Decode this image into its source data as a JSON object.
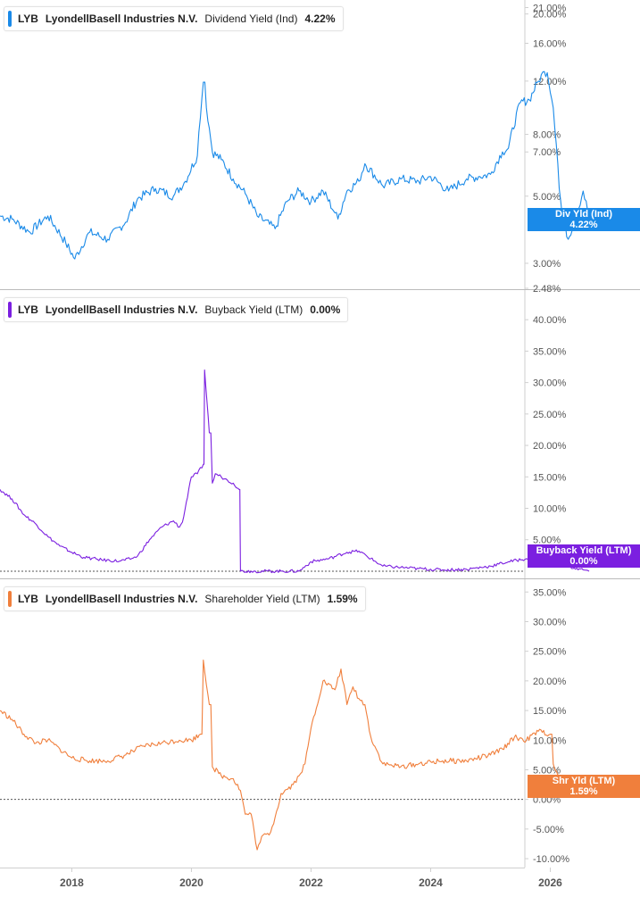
{
  "colors": {
    "dividend": "#1a8ae8",
    "buyback": "#7b1fe0",
    "shareholder": "#f07f3c",
    "axis_text": "#555555",
    "divider": "#bbbbbb"
  },
  "chart_data": [
    {
      "type": "line",
      "title": "LYB  LyondellBasell Industries N.V.  Dividend Yield (Ind)  4.22%",
      "legend": {
        "ticker": "LYB",
        "company": "LyondellBasell Industries N.V.",
        "metric": "Dividend Yield (Ind)",
        "value": "4.22%"
      },
      "badge": {
        "label": "Div Yld (Ind)",
        "value": "4.22%"
      },
      "scale": "log",
      "ylim": [
        2.48,
        21.5
      ],
      "yticks": [
        "21.00%",
        "20.00%",
        "16.00%",
        "12.00%",
        "8.00%",
        "7.00%",
        "5.00%",
        "3.00%",
        "2.48%"
      ],
      "x": [
        2016.8,
        2017.0,
        2017.3,
        2017.6,
        2017.9,
        2018.05,
        2018.3,
        2018.6,
        2018.9,
        2019.1,
        2019.4,
        2019.7,
        2019.9,
        2020.1,
        2020.2,
        2020.25,
        2020.35,
        2020.5,
        2020.7,
        2020.9,
        2021.1,
        2021.4,
        2021.6,
        2021.8,
        2022.0,
        2022.2,
        2022.4,
        2022.45,
        2022.6,
        2022.8,
        2022.9,
        2023.2,
        2023.5,
        2023.8,
        2024.0,
        2024.3,
        2024.6,
        2024.8,
        2025.0,
        2025.2,
        2025.3,
        2025.5,
        2025.65,
        2025.8,
        2025.9,
        2025.95,
        2026.05,
        2026.15,
        2026.2,
        2026.3,
        2026.45,
        2026.55,
        2026.65
      ],
      "series": [
        {
          "name": "Dividend Yield (Ind)",
          "values": [
            4.3,
            4.2,
            3.8,
            4.3,
            3.5,
            3.1,
            3.8,
            3.6,
            4.1,
            4.9,
            5.3,
            5.0,
            5.6,
            6.8,
            11.9,
            9.8,
            7.0,
            6.6,
            5.7,
            5.1,
            4.3,
            3.9,
            4.8,
            5.2,
            4.8,
            5.2,
            4.4,
            4.2,
            5.2,
            5.6,
            6.4,
            5.4,
            5.7,
            5.6,
            5.8,
            5.2,
            5.7,
            5.8,
            5.9,
            7.0,
            7.2,
            10.2,
            10.4,
            12.0,
            12.9,
            12.8,
            9.8,
            5.3,
            4.3,
            3.6,
            4.4,
            5.2,
            4.22
          ]
        }
      ],
      "xlim": [
        2016.8,
        2027.5
      ]
    },
    {
      "type": "line",
      "title": "LYB  LyondellBasell Industries N.V.  Buyback Yield (LTM)  0.00%",
      "legend": {
        "ticker": "LYB",
        "company": "LyondellBasell Industries N.V.",
        "metric": "Buyback Yield (LTM)",
        "value": "0.00%"
      },
      "badge": {
        "label": "Buyback Yield (LTM)",
        "value": "0.00%"
      },
      "scale": "linear",
      "ylim": [
        -1,
        44
      ],
      "yticks": [
        "40.00%",
        "35.00%",
        "30.00%",
        "25.00%",
        "20.00%",
        "15.00%",
        "10.00%",
        "5.00%"
      ],
      "x": [
        2016.8,
        2017.0,
        2017.2,
        2017.4,
        2017.6,
        2017.8,
        2018.0,
        2018.2,
        2018.5,
        2018.8,
        2019.0,
        2019.1,
        2019.3,
        2019.5,
        2019.7,
        2019.8,
        2019.85,
        2020.0,
        2020.1,
        2020.2,
        2020.22,
        2020.3,
        2020.35,
        2020.4,
        2020.5,
        2020.6,
        2020.7,
        2020.8,
        2020.82,
        2021.0,
        2021.5,
        2021.8,
        2022.0,
        2022.3,
        2022.6,
        2022.8,
        2023.0,
        2023.2,
        2023.5,
        2023.8,
        2024.2,
        2024.6,
        2025.0,
        2025.3,
        2025.6,
        2025.8,
        2026.0,
        2026.2,
        2026.4,
        2026.55,
        2026.65
      ],
      "series": [
        {
          "name": "Buyback Yield (LTM)",
          "values": [
            13.0,
            11.5,
            9.0,
            7.5,
            5.5,
            4.0,
            3.0,
            2.2,
            1.8,
            1.6,
            2.0,
            2.4,
            5.0,
            7.0,
            8.0,
            7.0,
            7.8,
            15.0,
            15.5,
            17.0,
            32.0,
            22.0,
            14.0,
            15.5,
            15.0,
            14.5,
            14.0,
            13.0,
            0.0,
            0.0,
            0.0,
            0.0,
            1.5,
            2.0,
            3.0,
            3.2,
            2.0,
            0.8,
            0.6,
            0.4,
            0.2,
            0.3,
            0.8,
            1.5,
            2.0,
            2.2,
            1.8,
            1.0,
            0.5,
            0.2,
            0.0
          ]
        }
      ],
      "xlim": [
        2016.8,
        2027.5
      ]
    },
    {
      "type": "line",
      "title": "LYB  LyondellBasell Industries N.V.  Shareholder Yield (LTM)  1.59%",
      "legend": {
        "ticker": "LYB",
        "company": "LyondellBasell Industries N.V.",
        "metric": "Shareholder Yield (LTM)",
        "value": "1.59%"
      },
      "badge": {
        "label": "Shr Yld (LTM)",
        "value": "1.59%"
      },
      "scale": "linear",
      "ylim": [
        -11.5,
        37
      ],
      "yticks": [
        "35.00%",
        "30.00%",
        "25.00%",
        "20.00%",
        "15.00%",
        "10.00%",
        "5.00%",
        "0.00%",
        "-5.00%",
        "-10.00%"
      ],
      "x": [
        2016.8,
        2017.0,
        2017.2,
        2017.4,
        2017.6,
        2017.8,
        2018.0,
        2018.3,
        2018.6,
        2018.9,
        2019.2,
        2019.5,
        2019.8,
        2020.0,
        2020.15,
        2020.2,
        2020.3,
        2020.35,
        2020.5,
        2020.7,
        2020.82,
        2020.9,
        2021.0,
        2021.1,
        2021.2,
        2021.3,
        2021.4,
        2021.5,
        2021.7,
        2021.8,
        2021.9,
        2022.0,
        2022.2,
        2022.4,
        2022.5,
        2022.6,
        2022.7,
        2022.8,
        2022.9,
        2023.0,
        2023.2,
        2023.5,
        2023.8,
        2024.2,
        2024.6,
        2025.0,
        2025.2,
        2025.4,
        2025.6,
        2025.8,
        2026.0,
        2026.05,
        2026.15,
        2026.3,
        2026.45,
        2026.6,
        2026.65
      ],
      "series": [
        {
          "name": "Shareholder Yield (LTM)",
          "values": [
            15.0,
            13.5,
            11.0,
            9.5,
            10.0,
            8.5,
            7.0,
            6.5,
            6.5,
            7.5,
            9.0,
            9.5,
            10.0,
            10.0,
            11.0,
            23.5,
            16.0,
            5.5,
            4.0,
            3.5,
            1.5,
            -2.5,
            -2.5,
            -8.5,
            -6.0,
            -6.0,
            -3.0,
            1.0,
            2.5,
            4.0,
            6.0,
            12.0,
            20.0,
            18.5,
            22.0,
            16.0,
            19.0,
            17.0,
            16.0,
            10.5,
            6.0,
            5.5,
            6.0,
            6.5,
            6.5,
            7.5,
            8.5,
            10.5,
            10.0,
            11.5,
            11.0,
            6.0,
            3.0,
            2.0,
            1.0,
            1.2,
            1.59
          ]
        }
      ],
      "xlim": [
        2016.8,
        2027.5
      ]
    }
  ],
  "x_axis": {
    "ticks": [
      2018,
      2020,
      2022,
      2024,
      2026
    ],
    "labels": [
      "2018",
      "2020",
      "2022",
      "2024",
      "2026"
    ]
  }
}
